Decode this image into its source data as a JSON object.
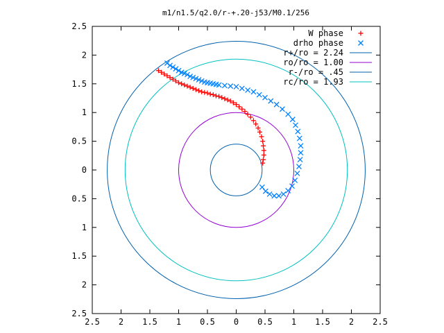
{
  "chart_data": {
    "type": "scatter",
    "title": "m1/n1.5/q2.0/r-+.20-j53/M0.1/256",
    "xlabel": "",
    "ylabel": "",
    "xlim": [
      -2.5,
      2.5
    ],
    "ylim": [
      -2.5,
      2.5
    ],
    "x_tick_labels": [
      "2.5",
      "2",
      "1.5",
      "1",
      "0.5",
      "0",
      "0.5",
      "1",
      "1.5",
      "2",
      "2.5"
    ],
    "y_tick_labels": [
      "2.5",
      "2",
      "1.5",
      "1",
      "0.5",
      "0",
      "0.5",
      "1",
      "1.5",
      "2",
      "2.5"
    ],
    "grid": false,
    "legend_position": "top-right",
    "series": [
      {
        "name": "W phase",
        "kind": "points",
        "marker": "+",
        "color": "#ff0000",
        "points": [
          [
            -1.35,
            1.73
          ],
          [
            -1.3,
            1.7
          ],
          [
            -1.25,
            1.67
          ],
          [
            -1.2,
            1.64
          ],
          [
            -1.15,
            1.61
          ],
          [
            -1.1,
            1.58
          ],
          [
            -1.05,
            1.55
          ],
          [
            -1.0,
            1.52
          ],
          [
            -0.95,
            1.5
          ],
          [
            -0.9,
            1.48
          ],
          [
            -0.85,
            1.46
          ],
          [
            -0.8,
            1.44
          ],
          [
            -0.75,
            1.42
          ],
          [
            -0.7,
            1.4
          ],
          [
            -0.65,
            1.38
          ],
          [
            -0.6,
            1.36
          ],
          [
            -0.55,
            1.35
          ],
          [
            -0.5,
            1.34
          ],
          [
            -0.45,
            1.32
          ],
          [
            -0.4,
            1.31
          ],
          [
            -0.35,
            1.29
          ],
          [
            -0.3,
            1.28
          ],
          [
            -0.25,
            1.26
          ],
          [
            -0.2,
            1.24
          ],
          [
            -0.15,
            1.22
          ],
          [
            -0.1,
            1.2
          ],
          [
            -0.05,
            1.17
          ],
          [
            0.0,
            1.14
          ],
          [
            0.05,
            1.1
          ],
          [
            0.1,
            1.06
          ],
          [
            0.15,
            1.02
          ],
          [
            0.2,
            0.97
          ],
          [
            0.25,
            0.92
          ],
          [
            0.3,
            0.86
          ],
          [
            0.34,
            0.8
          ],
          [
            0.38,
            0.73
          ],
          [
            0.41,
            0.66
          ],
          [
            0.44,
            0.58
          ],
          [
            0.46,
            0.5
          ],
          [
            0.47,
            0.42
          ],
          [
            0.48,
            0.34
          ],
          [
            0.48,
            0.26
          ],
          [
            0.47,
            0.18
          ],
          [
            0.46,
            0.12
          ]
        ]
      },
      {
        "name": "drho phase",
        "kind": "points",
        "marker": "x",
        "color": "#0080ff",
        "points": [
          [
            -1.2,
            1.86
          ],
          [
            -1.15,
            1.82
          ],
          [
            -1.1,
            1.79
          ],
          [
            -1.05,
            1.76
          ],
          [
            -1.0,
            1.73
          ],
          [
            -0.95,
            1.7
          ],
          [
            -0.9,
            1.68
          ],
          [
            -0.85,
            1.66
          ],
          [
            -0.8,
            1.63
          ],
          [
            -0.75,
            1.61
          ],
          [
            -0.7,
            1.59
          ],
          [
            -0.65,
            1.57
          ],
          [
            -0.6,
            1.55
          ],
          [
            -0.55,
            1.53
          ],
          [
            -0.5,
            1.52
          ],
          [
            -0.45,
            1.51
          ],
          [
            -0.4,
            1.5
          ],
          [
            -0.35,
            1.49
          ],
          [
            -0.3,
            1.48
          ],
          [
            -0.2,
            1.47
          ],
          [
            -0.1,
            1.46
          ],
          [
            0.0,
            1.45
          ],
          [
            0.1,
            1.42
          ],
          [
            0.2,
            1.39
          ],
          [
            0.3,
            1.36
          ],
          [
            0.4,
            1.31
          ],
          [
            0.5,
            1.26
          ],
          [
            0.6,
            1.2
          ],
          [
            0.7,
            1.14
          ],
          [
            0.8,
            1.06
          ],
          [
            0.9,
            0.97
          ],
          [
            0.98,
            0.88
          ],
          [
            1.03,
            0.78
          ],
          [
            1.07,
            0.67
          ],
          [
            1.1,
            0.55
          ],
          [
            1.12,
            0.42
          ],
          [
            1.12,
            0.3
          ],
          [
            1.11,
            0.18
          ],
          [
            1.09,
            0.06
          ],
          [
            1.06,
            -0.06
          ],
          [
            1.02,
            -0.18
          ],
          [
            0.97,
            -0.28
          ],
          [
            0.9,
            -0.36
          ],
          [
            0.82,
            -0.42
          ],
          [
            0.74,
            -0.45
          ],
          [
            0.66,
            -0.45
          ],
          [
            0.58,
            -0.42
          ],
          [
            0.51,
            -0.37
          ],
          [
            0.45,
            -0.3
          ]
        ]
      },
      {
        "name": "r+/ro = 2.24",
        "kind": "circle",
        "radius": 2.24,
        "color": "#0060ad"
      },
      {
        "name": "ro/ro = 1.00",
        "kind": "circle",
        "radius": 1.0,
        "color": "#9400d3"
      },
      {
        "name": "r-/ro = .45",
        "kind": "circle",
        "radius": 0.45,
        "color": "#0060ad"
      },
      {
        "name": "rc/ro = 1.93",
        "kind": "circle",
        "radius": 1.93,
        "color": "#00c0c0"
      }
    ]
  }
}
